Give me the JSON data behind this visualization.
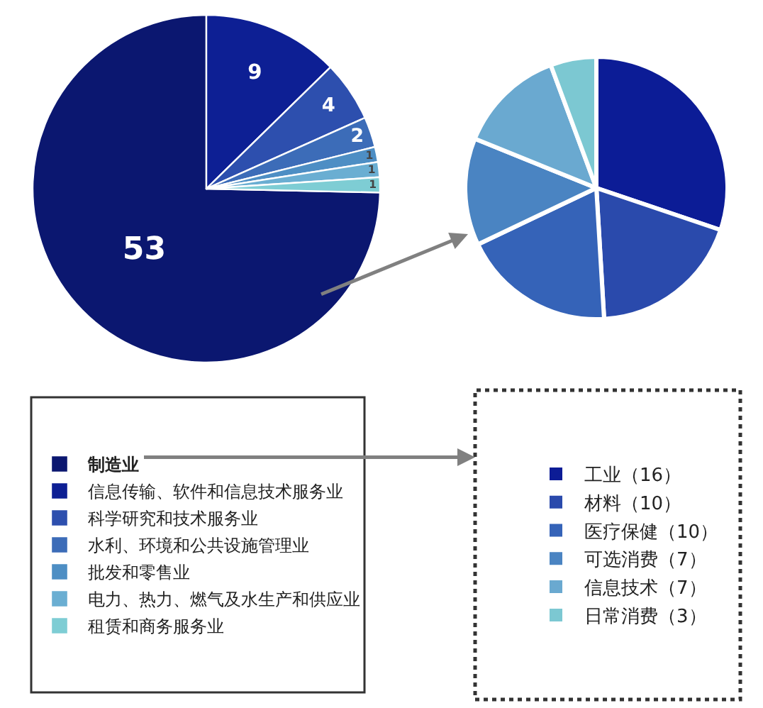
{
  "chart_data": [
    {
      "type": "pie",
      "categories": [
        "制造业",
        "信息传输、软件和信息技术服务业",
        "科学研究和技术服务业",
        "水利、环境和公共设施管理业",
        "批发和零售业",
        "电力、热力、燃气及水生产和供应业",
        "租赁和商务服务业"
      ],
      "values": [
        53,
        9,
        4,
        2,
        1,
        1,
        1
      ],
      "colors": [
        "#0b1770",
        "#0d1f94",
        "#2d4fae",
        "#3c6cb8",
        "#4d8ec4",
        "#6aaed2",
        "#7ecdd4"
      ],
      "data_labels": true,
      "legend": "bottom"
    },
    {
      "type": "pie",
      "categories": [
        "工业（16）",
        "材料（10）",
        "医疗保健（10）",
        "可选消费（7）",
        "信息技术（7）",
        "日常消费（3）"
      ],
      "values": [
        16,
        10,
        10,
        7,
        7,
        3
      ],
      "colors": [
        "#0c1c96",
        "#2a4aac",
        "#3563b8",
        "#4a84c2",
        "#6aa9d0",
        "#7cc8d2"
      ],
      "legend": "bottom"
    }
  ]
}
